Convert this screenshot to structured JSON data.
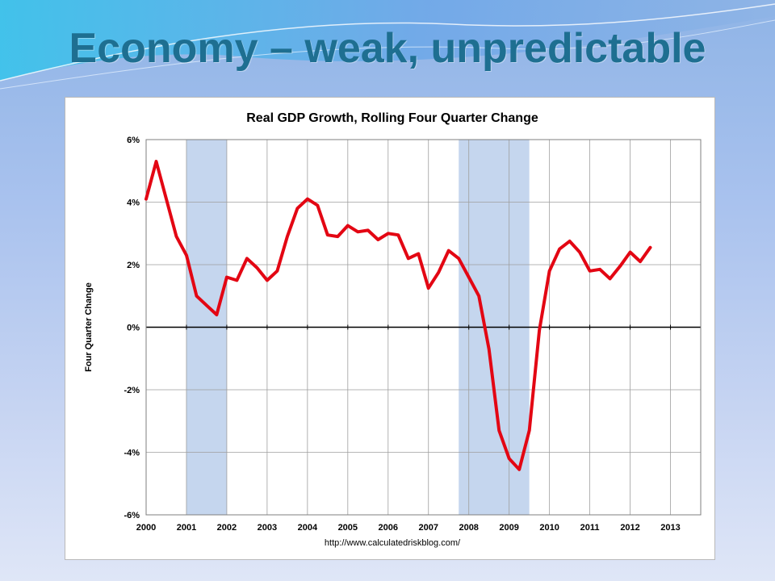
{
  "slide": {
    "title": "Economy – weak, unpredictable"
  },
  "colors": {
    "title": "#1e6f91",
    "line": "#e30613",
    "recession": "#c5d6ee",
    "grid": "#9e9e9e"
  },
  "chart_data": {
    "type": "line",
    "title": "Real GDP Growth, Rolling Four Quarter Change",
    "xlabel": "",
    "ylabel": "Four Quarter Change",
    "source": "http://www.calculatedriskblog.com/",
    "xlim": [
      2000,
      2013.75
    ],
    "ylim": [
      -6,
      6
    ],
    "grid": true,
    "x_ticks": [
      {
        "value": 2000,
        "label": "2000"
      },
      {
        "value": 2001,
        "label": "2001"
      },
      {
        "value": 2002,
        "label": "2002"
      },
      {
        "value": 2003,
        "label": "2003"
      },
      {
        "value": 2004,
        "label": "2004"
      },
      {
        "value": 2005,
        "label": "2005"
      },
      {
        "value": 2006,
        "label": "2006"
      },
      {
        "value": 2007,
        "label": "2007"
      },
      {
        "value": 2008,
        "label": "2008"
      },
      {
        "value": 2009,
        "label": "2009"
      },
      {
        "value": 2010,
        "label": "2010"
      },
      {
        "value": 2011,
        "label": "2011"
      },
      {
        "value": 2012,
        "label": "2012"
      },
      {
        "value": 2013,
        "label": "2013"
      }
    ],
    "y_ticks": [
      {
        "value": 6,
        "label": "6%"
      },
      {
        "value": 4,
        "label": "4%"
      },
      {
        "value": 2,
        "label": "2%"
      },
      {
        "value": 0,
        "label": "0%"
      },
      {
        "value": -2,
        "label": "-2%"
      },
      {
        "value": -4,
        "label": "-4%"
      },
      {
        "value": -6,
        "label": "-6%"
      }
    ],
    "recessions": [
      {
        "start": 2001.0,
        "end": 2002.0
      },
      {
        "start": 2007.75,
        "end": 2009.5
      }
    ],
    "series": [
      {
        "values": [
          {
            "x": 2000.0,
            "y": 4.1
          },
          {
            "x": 2000.25,
            "y": 5.3
          },
          {
            "x": 2000.5,
            "y": 4.1
          },
          {
            "x": 2000.75,
            "y": 2.9
          },
          {
            "x": 2001.0,
            "y": 2.3
          },
          {
            "x": 2001.25,
            "y": 1.0
          },
          {
            "x": 2001.5,
            "y": 0.7
          },
          {
            "x": 2001.75,
            "y": 0.4
          },
          {
            "x": 2002.0,
            "y": 1.6
          },
          {
            "x": 2002.25,
            "y": 1.5
          },
          {
            "x": 2002.5,
            "y": 2.2
          },
          {
            "x": 2002.75,
            "y": 1.9
          },
          {
            "x": 2003.0,
            "y": 1.5
          },
          {
            "x": 2003.25,
            "y": 1.8
          },
          {
            "x": 2003.5,
            "y": 2.9
          },
          {
            "x": 2003.75,
            "y": 3.8
          },
          {
            "x": 2004.0,
            "y": 4.1
          },
          {
            "x": 2004.25,
            "y": 3.9
          },
          {
            "x": 2004.5,
            "y": 2.95
          },
          {
            "x": 2004.75,
            "y": 2.9
          },
          {
            "x": 2005.0,
            "y": 3.25
          },
          {
            "x": 2005.25,
            "y": 3.05
          },
          {
            "x": 2005.5,
            "y": 3.1
          },
          {
            "x": 2005.75,
            "y": 2.8
          },
          {
            "x": 2006.0,
            "y": 3.0
          },
          {
            "x": 2006.25,
            "y": 2.95
          },
          {
            "x": 2006.5,
            "y": 2.2
          },
          {
            "x": 2006.75,
            "y": 2.35
          },
          {
            "x": 2007.0,
            "y": 1.25
          },
          {
            "x": 2007.25,
            "y": 1.75
          },
          {
            "x": 2007.5,
            "y": 2.45
          },
          {
            "x": 2007.75,
            "y": 2.2
          },
          {
            "x": 2008.0,
            "y": 1.6
          },
          {
            "x": 2008.25,
            "y": 1.0
          },
          {
            "x": 2008.5,
            "y": -0.7
          },
          {
            "x": 2008.75,
            "y": -3.3
          },
          {
            "x": 2009.0,
            "y": -4.2
          },
          {
            "x": 2009.25,
            "y": -4.55
          },
          {
            "x": 2009.5,
            "y": -3.3
          },
          {
            "x": 2009.75,
            "y": -0.1
          },
          {
            "x": 2010.0,
            "y": 1.8
          },
          {
            "x": 2010.25,
            "y": 2.5
          },
          {
            "x": 2010.5,
            "y": 2.75
          },
          {
            "x": 2010.75,
            "y": 2.4
          },
          {
            "x": 2011.0,
            "y": 1.8
          },
          {
            "x": 2011.25,
            "y": 1.85
          },
          {
            "x": 2011.5,
            "y": 1.55
          },
          {
            "x": 2011.75,
            "y": 1.95
          },
          {
            "x": 2012.0,
            "y": 2.4
          },
          {
            "x": 2012.25,
            "y": 2.1
          },
          {
            "x": 2012.5,
            "y": 2.55
          }
        ]
      }
    ]
  }
}
